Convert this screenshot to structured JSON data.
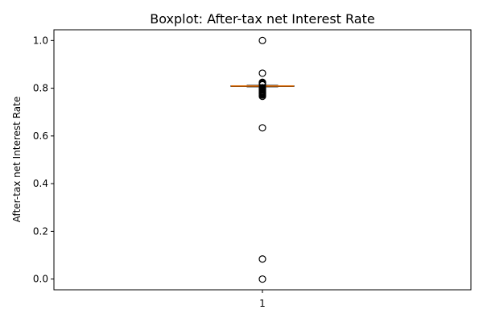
{
  "chart_data": {
    "type": "boxplot",
    "title": "Boxplot:  After-tax net Interest Rate",
    "xlabel": "",
    "ylabel": "After-tax net Interest Rate",
    "categories": [
      "1"
    ],
    "ylim": [
      -0.045,
      1.045
    ],
    "yticks": [
      0.0,
      0.2,
      0.4,
      0.6,
      0.8,
      1.0
    ],
    "ytick_labels": [
      "0.0",
      "0.2",
      "0.4",
      "0.6",
      "0.8",
      "1.0"
    ],
    "box": {
      "whisker_low": 0.806,
      "q1": 0.808,
      "median": 0.809,
      "q3": 0.8105,
      "whisker_high": 0.812
    },
    "outliers": [
      1.0,
      0.863,
      0.825,
      0.822,
      0.819,
      0.816,
      0.814,
      0.802,
      0.799,
      0.797,
      0.794,
      0.791,
      0.787,
      0.784,
      0.781,
      0.778,
      0.775,
      0.771,
      0.766,
      0.634,
      0.084,
      0.0
    ],
    "grid": false,
    "colors": {
      "median": "#ff7f0e",
      "box": "#000000",
      "outlier": "#000000"
    }
  }
}
